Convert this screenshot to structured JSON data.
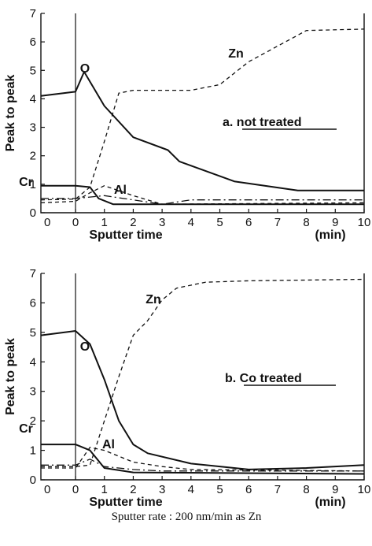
{
  "caption": "Sputter rate : 200 nm/min as Zn",
  "chart_data": [
    {
      "type": "line",
      "panel": "a",
      "annotation": "a. not treated",
      "xlabel": "Sputter time",
      "ylabel": "Peak to peak",
      "xunit": "(min)",
      "xlim": [
        -1.2,
        10
      ],
      "ylim": [
        0,
        7
      ],
      "xtick_labels": [
        "0",
        "0",
        "1",
        "2",
        "3",
        "4",
        "5",
        "6",
        "7",
        "8",
        "9",
        "10"
      ],
      "ytick_labels": [
        "0",
        "1",
        "2",
        "3",
        "4",
        "5",
        "6",
        "7"
      ],
      "series": [
        {
          "name": "O",
          "style": "solid",
          "x": [
            -1.2,
            0,
            0.3,
            1,
            2,
            3.2,
            3.6,
            5.5,
            7.7,
            10
          ],
          "y": [
            4.1,
            4.25,
            4.95,
            3.75,
            2.65,
            2.2,
            1.8,
            1.1,
            0.78,
            0.78
          ]
        },
        {
          "name": "Zn",
          "style": "dashed",
          "x": [
            -1.2,
            0,
            0.5,
            1,
            1.5,
            2,
            4,
            5,
            6,
            8,
            10
          ],
          "y": [
            0.45,
            0.48,
            0.9,
            2.5,
            4.2,
            4.3,
            4.3,
            4.5,
            5.3,
            6.4,
            6.45
          ]
        },
        {
          "name": "Cr",
          "style": "solid",
          "x": [
            -1.2,
            0,
            0.5,
            0.8,
            1.3,
            3,
            10
          ],
          "y": [
            0.95,
            0.95,
            0.9,
            0.5,
            0.3,
            0.3,
            0.3
          ]
        },
        {
          "name": "Al",
          "style": "dashed",
          "x": [
            -1.2,
            0,
            0.5,
            0.8,
            1,
            2,
            3,
            10
          ],
          "y": [
            0.35,
            0.4,
            0.7,
            0.85,
            0.95,
            0.6,
            0.3,
            0.35
          ]
        },
        {
          "name": "",
          "style": "dash-dot",
          "x": [
            -1.2,
            0,
            0.5,
            1,
            2,
            3,
            4,
            10
          ],
          "y": [
            0.5,
            0.5,
            0.55,
            0.6,
            0.45,
            0.3,
            0.45,
            0.45
          ]
        }
      ]
    },
    {
      "type": "line",
      "panel": "b",
      "annotation": "b. Co treated",
      "xlabel": "Sputter time",
      "ylabel": "Peak to peak",
      "xunit": "(min)",
      "xlim": [
        -1.2,
        10
      ],
      "ylim": [
        0,
        7
      ],
      "xtick_labels": [
        "0",
        "0",
        "1",
        "2",
        "3",
        "4",
        "5",
        "6",
        "7",
        "8",
        "9",
        "10"
      ],
      "ytick_labels": [
        "0",
        "1",
        "2",
        "3",
        "4",
        "5",
        "6",
        "7"
      ],
      "series": [
        {
          "name": "O",
          "style": "solid",
          "x": [
            -1.2,
            0,
            0.5,
            1,
            1.5,
            2,
            2.5,
            4,
            6,
            8,
            10
          ],
          "y": [
            4.9,
            5.05,
            4.6,
            3.4,
            2.0,
            1.2,
            0.9,
            0.55,
            0.35,
            0.4,
            0.5
          ]
        },
        {
          "name": "Zn",
          "style": "dashed",
          "x": [
            -1.2,
            0,
            0.5,
            1,
            1.5,
            2,
            2.5,
            3,
            3.5,
            4.5,
            6,
            10
          ],
          "y": [
            0.45,
            0.45,
            0.5,
            2.0,
            3.5,
            4.9,
            5.4,
            6.1,
            6.5,
            6.7,
            6.75,
            6.8
          ]
        },
        {
          "name": "Cr",
          "style": "solid",
          "x": [
            -1.2,
            0,
            0.5,
            1,
            2,
            10
          ],
          "y": [
            1.2,
            1.2,
            1.0,
            0.4,
            0.25,
            0.2
          ]
        },
        {
          "name": "Al",
          "style": "dashed",
          "x": [
            -1.2,
            0,
            0.5,
            1,
            2,
            3,
            4,
            10
          ],
          "y": [
            0.4,
            0.4,
            1.1,
            1.0,
            0.6,
            0.45,
            0.35,
            0.3
          ]
        },
        {
          "name": "",
          "style": "dash-dot",
          "x": [
            -1.2,
            0,
            0.5,
            1,
            2,
            3,
            10
          ],
          "y": [
            0.5,
            0.5,
            0.7,
            0.45,
            0.35,
            0.3,
            0.3
          ]
        }
      ]
    }
  ]
}
